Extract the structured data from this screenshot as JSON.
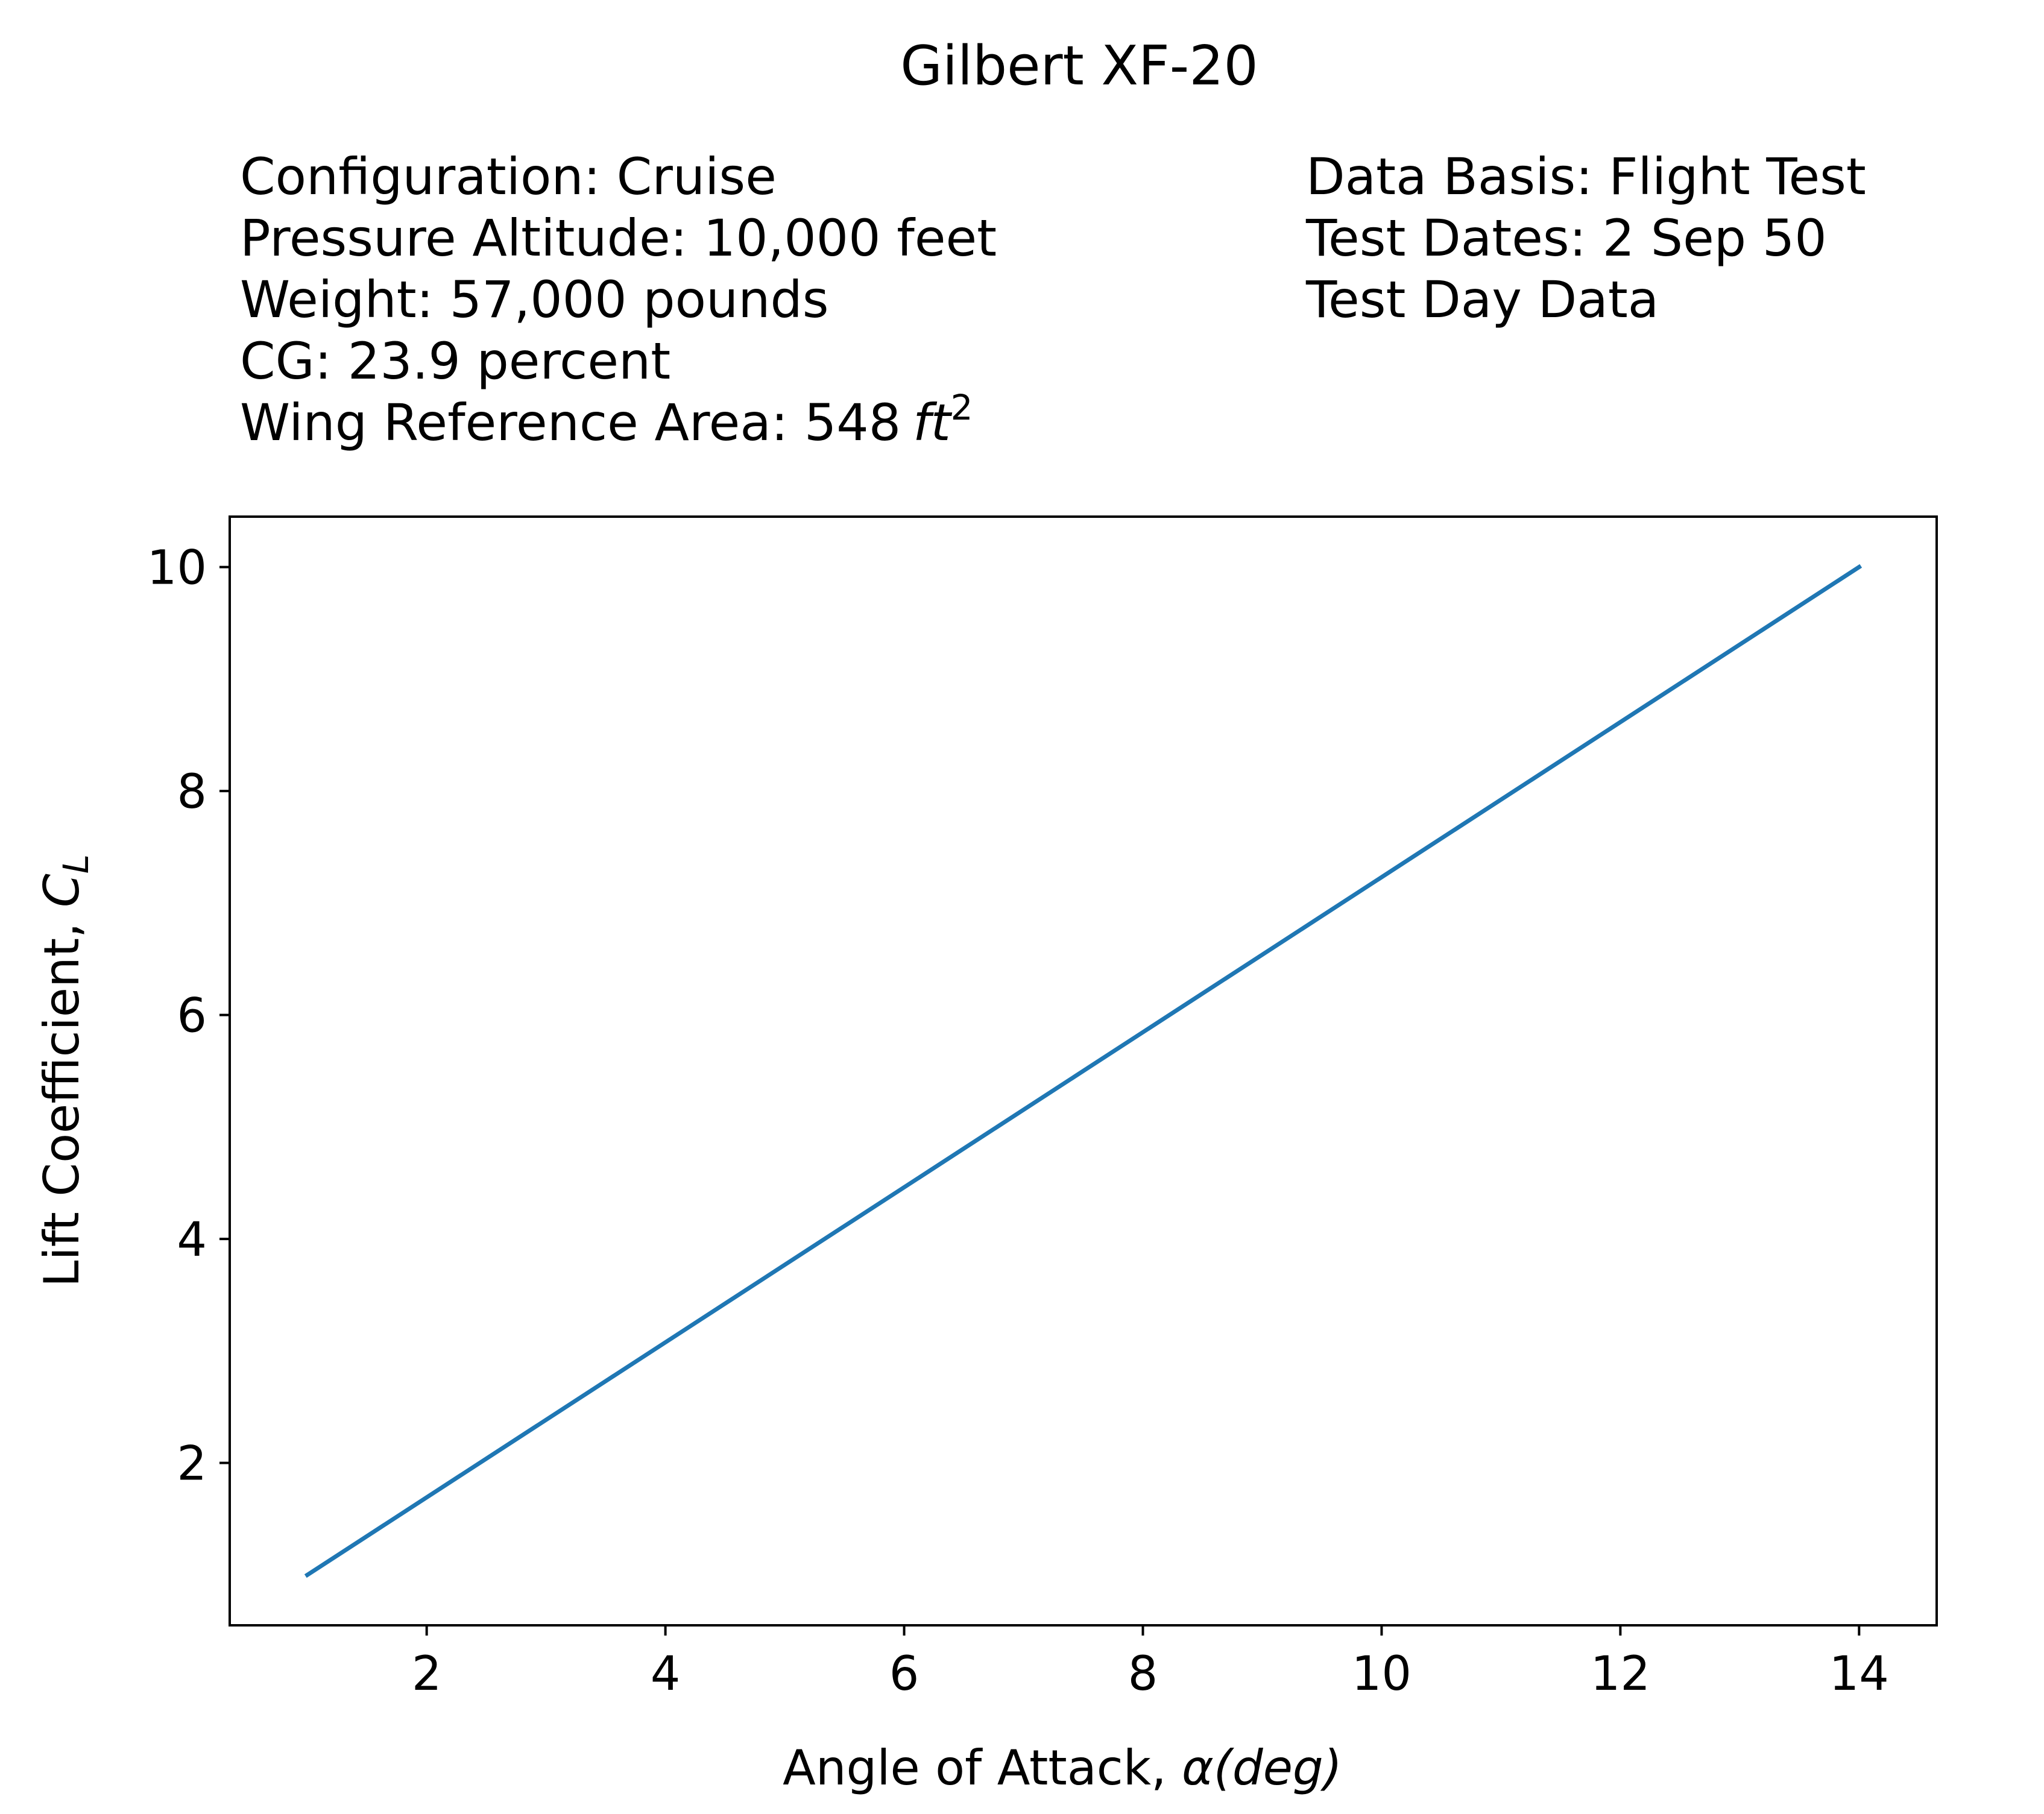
{
  "chart_data": {
    "type": "line",
    "title": "Gilbert XF-20",
    "info_left": [
      "Configuration: Cruise",
      "Pressure Altitude: 10,000 feet",
      "Weight: 57,000 pounds",
      "CG: 23.9 percent",
      "Wing Reference Area: 548"
    ],
    "info_left_unit": {
      "base": "ft",
      "sup": "2"
    },
    "info_right": [
      "Data Basis: Flight Test",
      "Test Dates: 2 Sep 50",
      "Test Day Data"
    ],
    "xlabel": {
      "text": "Angle of Attack, ",
      "symbol": "α",
      "unit": "(deg)"
    },
    "ylabel": {
      "text": "Lift Coefficient, ",
      "symbol": "C",
      "sub": "L"
    },
    "xlim": [
      0.35,
      14.65
    ],
    "ylim": [
      0.55,
      10.45
    ],
    "xticks": [
      2,
      4,
      6,
      8,
      10,
      12,
      14
    ],
    "yticks": [
      2,
      4,
      6,
      8,
      10
    ],
    "grid": false,
    "series": [
      {
        "x": [
          1,
          14
        ],
        "y": [
          1,
          10
        ],
        "color": "#1f77b4"
      }
    ]
  }
}
